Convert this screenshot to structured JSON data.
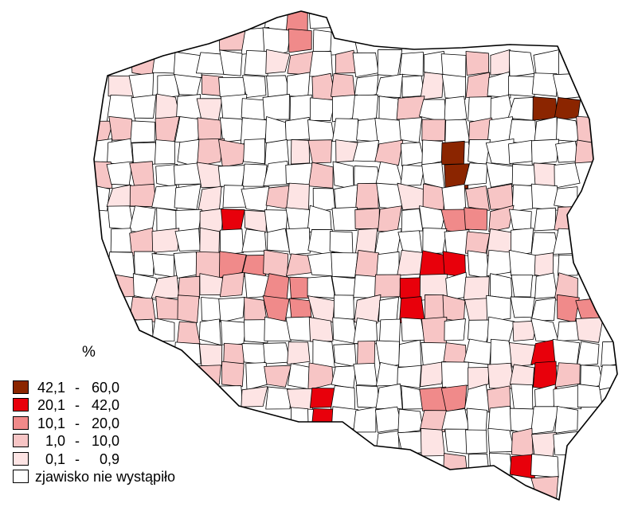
{
  "legend": {
    "unit": "%",
    "classes": [
      {
        "low": "42,1",
        "high": "60,0",
        "color": "#8b2500"
      },
      {
        "low": "20,1",
        "high": "42,0",
        "color": "#e8000b"
      },
      {
        "low": "10,1",
        "high": "20,0",
        "color": "#f08a8a"
      },
      {
        "low": "1,0",
        "high": "10,0",
        "color": "#f7c5c5"
      },
      {
        "low": "0,1",
        "high": "0,9",
        "color": "#fde4e4"
      },
      {
        "label": "zjawisko nie wystąpiło",
        "color": "#ffffff"
      }
    ]
  }
}
